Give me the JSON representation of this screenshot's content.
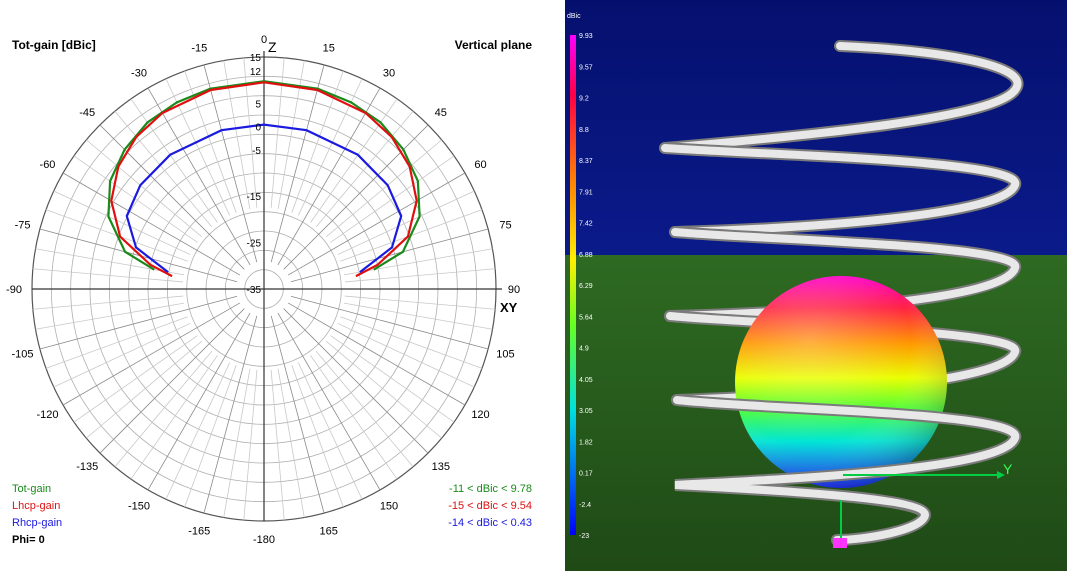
{
  "polar": {
    "title_left": "Tot-gain [dBic]",
    "title_right": "Vertical plane",
    "axis_top": "Z",
    "axis_right": "XY",
    "angle_labels": [
      {
        "deg": 0,
        "text": "0"
      },
      {
        "deg": 15,
        "text": "15"
      },
      {
        "deg": 30,
        "text": "30"
      },
      {
        "deg": 45,
        "text": "45"
      },
      {
        "deg": 60,
        "text": "60"
      },
      {
        "deg": 75,
        "text": "75"
      },
      {
        "deg": 90,
        "text": "90"
      },
      {
        "deg": 105,
        "text": "105"
      },
      {
        "deg": 120,
        "text": "120"
      },
      {
        "deg": 135,
        "text": "135"
      },
      {
        "deg": 150,
        "text": "150"
      },
      {
        "deg": 165,
        "text": "165"
      },
      {
        "deg": 180,
        "text": "-180"
      },
      {
        "deg": -165,
        "text": "-165"
      },
      {
        "deg": -150,
        "text": "-150"
      },
      {
        "deg": -135,
        "text": "-135"
      },
      {
        "deg": -120,
        "text": "-120"
      },
      {
        "deg": -105,
        "text": "-105"
      },
      {
        "deg": -90,
        "text": "-90"
      },
      {
        "deg": -75,
        "text": "-75"
      },
      {
        "deg": -60,
        "text": "-60"
      },
      {
        "deg": -45,
        "text": "-45"
      },
      {
        "deg": -30,
        "text": "-30"
      },
      {
        "deg": -15,
        "text": "-15"
      }
    ],
    "radial_labels": [
      "15",
      "12",
      "5",
      "0",
      "-5",
      "-15",
      "-25",
      "-35"
    ],
    "legend": [
      {
        "name": "Tot-gain",
        "color": "#1a8a1a",
        "range": "-11 < dBic < 9.78"
      },
      {
        "name": "Lhcp-gain",
        "color": "#e01010",
        "range": "-15 < dBic < 9.54"
      },
      {
        "name": "Rhcp-gain",
        "color": "#1a1ae0",
        "range": "-14 < dBic < 0.43"
      }
    ],
    "phi_label": "Phi= 0"
  },
  "chart_data": {
    "type": "polar",
    "angle_unit": "deg",
    "radial_range": [
      -35,
      15
    ],
    "series": [
      {
        "name": "Tot-gain",
        "color": "#1a8a1a",
        "points": [
          [
            -80,
            -11
          ],
          [
            -75,
            -4
          ],
          [
            -65,
            2
          ],
          [
            -55,
            5.5
          ],
          [
            -45,
            7.5
          ],
          [
            -35,
            8.8
          ],
          [
            -25,
            9.4
          ],
          [
            -15,
            9.7
          ],
          [
            0,
            9.78
          ],
          [
            15,
            9.7
          ],
          [
            25,
            9.4
          ],
          [
            35,
            8.8
          ],
          [
            45,
            7.5
          ],
          [
            55,
            5.5
          ],
          [
            65,
            2
          ],
          [
            75,
            -4
          ],
          [
            80,
            -11
          ]
        ]
      },
      {
        "name": "Lhcp-gain",
        "color": "#e01010",
        "points": [
          [
            -82,
            -15
          ],
          [
            -78,
            -10
          ],
          [
            -70,
            -2
          ],
          [
            -60,
            3
          ],
          [
            -50,
            6
          ],
          [
            -40,
            7.8
          ],
          [
            -30,
            8.8
          ],
          [
            -15,
            9.4
          ],
          [
            0,
            9.54
          ],
          [
            15,
            9.4
          ],
          [
            30,
            8.8
          ],
          [
            40,
            7.8
          ],
          [
            50,
            6
          ],
          [
            60,
            3
          ],
          [
            70,
            -2
          ],
          [
            78,
            -10
          ],
          [
            82,
            -15
          ]
        ]
      },
      {
        "name": "Rhcp-gain",
        "color": "#1a1ae0",
        "points": [
          [
            -80,
            -14
          ],
          [
            -72,
            -6
          ],
          [
            -62,
            -1.5
          ],
          [
            -50,
            -0.2
          ],
          [
            -35,
            0.3
          ],
          [
            -15,
            0.43
          ],
          [
            0,
            0.43
          ],
          [
            15,
            0.43
          ],
          [
            35,
            0.3
          ],
          [
            50,
            -0.2
          ],
          [
            62,
            -1.5
          ],
          [
            72,
            -6
          ],
          [
            80,
            -14
          ]
        ]
      }
    ],
    "title": "Tot-gain [dBic]",
    "subtitle": "Vertical plane"
  },
  "pattern3d": {
    "scale_unit": "dBic",
    "scale_values": [
      "9.93",
      "9.57",
      "9.2",
      "8.8",
      "8.37",
      "7.91",
      "7.42",
      "6.88",
      "6.29",
      "5.64",
      "4.9",
      "4.05",
      "3.05",
      "1.82",
      "0.17",
      "-2.4",
      "-23"
    ],
    "axis_y": "Y"
  }
}
